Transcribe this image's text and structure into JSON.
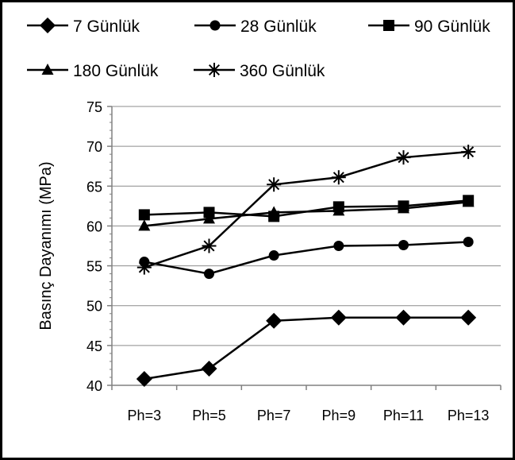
{
  "chart_data": {
    "type": "line",
    "title": "",
    "xlabel": "",
    "ylabel": "Basınç Dayanımı (MPa)",
    "categories": [
      "Ph=3",
      "Ph=5",
      "Ph=7",
      "Ph=9",
      "Ph=11",
      "Ph=13"
    ],
    "ylim": [
      40,
      75
    ],
    "yticks": [
      40,
      45,
      50,
      55,
      60,
      65,
      70,
      75
    ],
    "grid": "horizontal",
    "legend_position": "top",
    "line_color": "#000000",
    "series": [
      {
        "name": "7 Günlük",
        "marker": "diamond",
        "values": [
          40.8,
          42.1,
          48.1,
          48.5,
          48.5,
          48.5
        ]
      },
      {
        "name": "28 Günlük",
        "marker": "circle",
        "values": [
          55.5,
          54.0,
          56.3,
          57.5,
          57.6,
          58.0
        ]
      },
      {
        "name": "90 Günlük",
        "marker": "square",
        "values": [
          61.4,
          61.7,
          61.2,
          62.4,
          62.5,
          63.2
        ]
      },
      {
        "name": "180 Günlük",
        "marker": "triangle",
        "values": [
          60.0,
          60.9,
          61.7,
          61.9,
          62.2,
          63.0
        ]
      },
      {
        "name": "360 Günlük",
        "marker": "star",
        "values": [
          54.8,
          57.5,
          65.2,
          66.1,
          68.6,
          69.3
        ]
      }
    ]
  }
}
